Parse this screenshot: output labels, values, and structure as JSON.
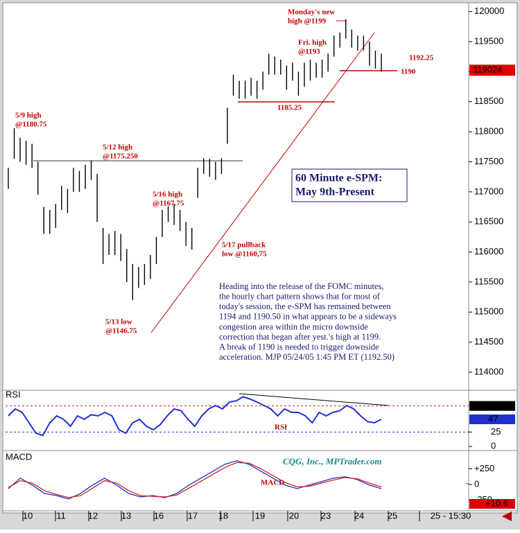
{
  "chart_data": {
    "type": "ohlc",
    "title": "60 Minute e-SPM:",
    "subtitle": "May 9th-Present",
    "ylim": [
      113700,
      120100
    ],
    "yticks": [
      114000,
      114500,
      115000,
      115500,
      116000,
      116500,
      117000,
      117500,
      118000,
      118500,
      119000,
      119500,
      120000
    ],
    "last_value": 119024,
    "high": [
      117400,
      118060,
      117900,
      117850,
      117800,
      117500,
      116750,
      116700,
      116800,
      117100,
      117050,
      117400,
      117350,
      117450,
      117520,
      117300,
      116400,
      116300,
      116350,
      116300,
      116050,
      115800,
      115750,
      115800,
      115950,
      116250,
      116700,
      116760,
      116800,
      116700,
      116500,
      116400,
      117400,
      117560,
      117550,
      117500,
      117560,
      118400,
      118950,
      118850,
      118850,
      118900,
      118850,
      119000,
      119300,
      119250,
      119200,
      119100,
      119150,
      119000,
      119150,
      119200,
      119150,
      119200,
      119300,
      119600,
      119650,
      119870,
      119700,
      119600,
      119600,
      119500,
      119350,
      119300
    ],
    "low": [
      117050,
      117550,
      117500,
      117450,
      117400,
      116950,
      116300,
      116300,
      116400,
      116700,
      116650,
      117000,
      117000,
      117050,
      117200,
      116500,
      115800,
      115950,
      115950,
      115850,
      115500,
      115200,
      115400,
      115450,
      115550,
      115800,
      116250,
      116500,
      116450,
      116350,
      116100,
      116040,
      116900,
      117300,
      117250,
      117200,
      117300,
      117800,
      118600,
      118550,
      118550,
      118600,
      118550,
      118700,
      118950,
      118950,
      118950,
      118700,
      118850,
      118600,
      118750,
      118850,
      118900,
      118900,
      119000,
      119250,
      119400,
      119550,
      119400,
      119350,
      119350,
      119100,
      119050,
      119000
    ],
    "x_labels": [
      "10",
      "11",
      "12",
      "13",
      "16",
      "17",
      "18",
      "19",
      "20",
      "23",
      "24",
      "25",
      "25 - 15:30"
    ],
    "annotations": [
      {
        "lines": [
          "Monday's new",
          "high @1199"
        ]
      },
      {
        "lines": [
          "Fri. high",
          "@1193"
        ]
      },
      {
        "lines": [
          "1192.25"
        ]
      },
      {
        "lines": [
          "1190"
        ]
      },
      {
        "lines": [
          "1185.25"
        ]
      },
      {
        "lines": [
          "5/9 high",
          "@1180.75"
        ]
      },
      {
        "lines": [
          "5/12 high",
          "@1175.250"
        ]
      },
      {
        "lines": [
          "5/16 high",
          "@1167.75"
        ]
      },
      {
        "lines": [
          "5/17 pullback",
          "low @1160,75"
        ]
      },
      {
        "lines": [
          "5/13 low",
          "@1146.75"
        ]
      }
    ],
    "note": [
      "Heading into the release of the FOMC minutes,",
      "the hourly chart pattern shows that for most of",
      "today's session, the e-SPM has remained between",
      "1194 and 1190.50 in what appears to be a sideways",
      "congestion area within the micro downside",
      "correction that began after yest.'s high at 1199.",
      "A break of 1190 is needed to trigger downside",
      "acceleration.  MJP  05/24/05 1:45 PM ET  (1192.50)"
    ],
    "watermark": "CQG, Inc., MPTrader.com",
    "rsi": {
      "label": "RSI",
      "inner_label": "RSI",
      "ylim": [
        -7,
        95
      ],
      "yticks": [
        25,
        0
      ],
      "upper_level": {
        "value": 70.2,
        "label": "70.2"
      },
      "last_value": 47,
      "color": "#1f2fd0",
      "values": [
        53,
        65,
        59,
        41,
        23,
        19,
        41,
        53,
        47,
        35,
        53,
        47,
        55,
        53,
        59,
        53,
        29,
        23,
        41,
        47,
        35,
        29,
        38,
        53,
        65,
        62,
        47,
        35,
        53,
        65,
        71,
        65,
        77,
        79,
        86,
        82,
        77,
        71,
        65,
        53,
        65,
        59,
        59,
        53,
        41,
        59,
        53,
        59,
        62,
        71,
        65,
        53,
        43,
        41,
        47
      ]
    },
    "macd": {
      "label": "MACD",
      "inner_label": "MACD",
      "ylim": [
        -400,
        520
      ],
      "yticks": [
        {
          "value": 250,
          "label": "+250"
        },
        0,
        -250
      ],
      "last_value": {
        "value": 10.6,
        "label": "+10.6"
      },
      "series": [
        {
          "color": "#1f2fd0",
          "values": [
            -67,
            100,
            -11,
            -144,
            -178,
            -233,
            -144,
            -11,
            100,
            -11,
            -144,
            -200,
            -178,
            -211,
            -144,
            -11,
            100,
            211,
            322,
            378,
            322,
            211,
            100,
            -11,
            -67,
            -11,
            44,
            100,
            122,
            78,
            -11,
            -67
          ]
        },
        {
          "color": "#d02020",
          "values": [
            -50,
            60,
            20,
            -100,
            -160,
            -210,
            -180,
            -60,
            60,
            20,
            -100,
            -180,
            -190,
            -200,
            -170,
            -60,
            50,
            160,
            270,
            350,
            340,
            250,
            140,
            30,
            -40,
            -30,
            20,
            70,
            110,
            90,
            20,
            -40
          ]
        }
      ]
    }
  }
}
